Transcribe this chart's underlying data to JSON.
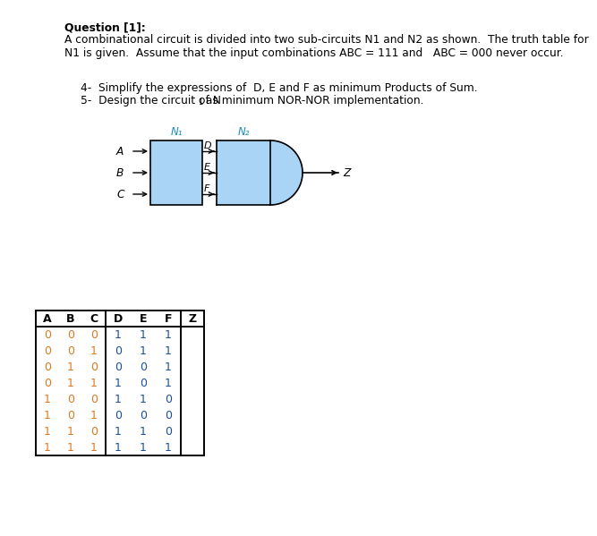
{
  "title_bold": "Question [1]:",
  "body_line1": "A combinational circuit is divided into two sub-circuits N1 and N2 as shown.  The truth table for",
  "body_line2": "N1 is given.  Assume that the input combinations ABC = 111 and   ABC = 000 never occur.",
  "item4": "4-  Simplify the expressions of  D, E and F as minimum Products of Sum.",
  "item5_pre": "5-  Design the circuit of N",
  "item5_sub": "1",
  "item5_post": " as minimum NOR-NOR implementation.",
  "table_headers": [
    "A",
    "B",
    "C",
    "D",
    "E",
    "F",
    "Z"
  ],
  "table_data": [
    [
      0,
      0,
      0,
      1,
      1,
      1,
      ""
    ],
    [
      0,
      0,
      1,
      0,
      1,
      1,
      ""
    ],
    [
      0,
      1,
      0,
      0,
      0,
      1,
      ""
    ],
    [
      0,
      1,
      1,
      1,
      0,
      1,
      ""
    ],
    [
      1,
      0,
      0,
      1,
      1,
      0,
      ""
    ],
    [
      1,
      0,
      1,
      0,
      0,
      0,
      ""
    ],
    [
      1,
      1,
      0,
      1,
      1,
      0,
      ""
    ],
    [
      1,
      1,
      1,
      1,
      1,
      1,
      ""
    ]
  ],
  "N1_label": "N₁",
  "N2_label": "N₂",
  "n1_color": "#aad4f5",
  "n2_color": "#aad4f5",
  "col_abc_color": "#e07820",
  "col_def_color": "#1a4fa0",
  "text_color": "#000000",
  "bg_color": "#ffffff",
  "circuit_label_color": "#1a8fc0"
}
